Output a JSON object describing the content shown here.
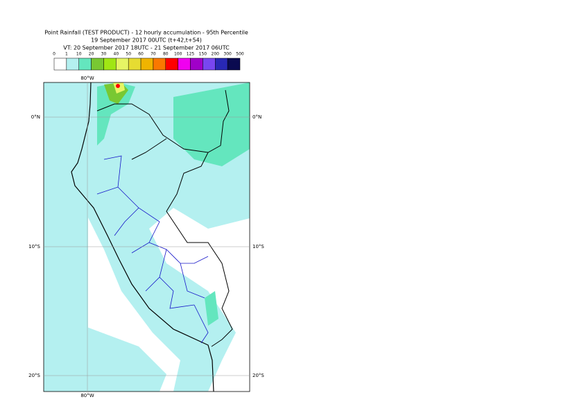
{
  "title_lines": [
    "Point Rainfall (TEST PRODUCT) - 12 hourly accumulation - 95th Percentile",
    "19 September 2017 00UTC (t+42,t+54)",
    "VT: 20 September 2017 18UTC - 21 September 2017 06UTC"
  ],
  "legend": {
    "thresholds": [
      0,
      1,
      10,
      20,
      30,
      40,
      50,
      60,
      70,
      80,
      100,
      125,
      150,
      200,
      300,
      500
    ],
    "colors": [
      "#ffffff",
      "#b4f0f0",
      "#64e6be",
      "#78c832",
      "#a0e614",
      "#e6f564",
      "#e6dc32",
      "#f0b400",
      "#fa7800",
      "#ff0000",
      "#f000f0",
      "#a000c8",
      "#7846f0",
      "#2828b4",
      "#0a0a50"
    ]
  },
  "map": {
    "lat_labels": [
      "0°N",
      "10°S",
      "20°S"
    ],
    "lon_labels": [
      "80°W"
    ]
  }
}
